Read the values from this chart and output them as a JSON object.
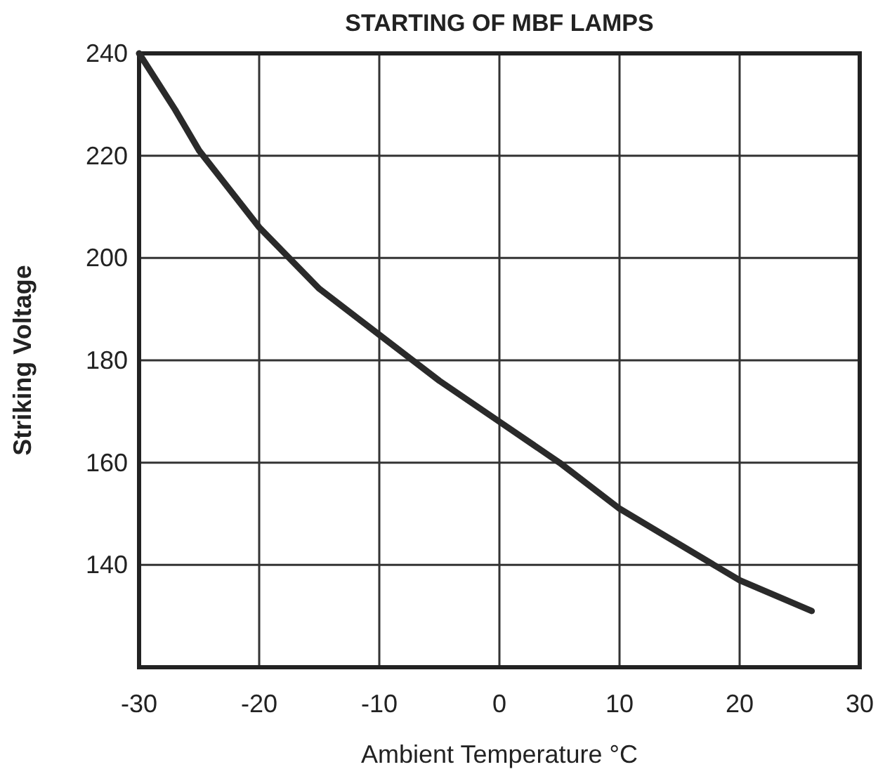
{
  "chart_data": {
    "type": "line",
    "title": "STARTING OF MBF LAMPS",
    "xlabel": "Ambient Temperature °C",
    "ylabel": "Striking Voltage",
    "x": [
      -30,
      -27,
      -25,
      -20,
      -15,
      -10,
      -5,
      0,
      5,
      10,
      15,
      20,
      26
    ],
    "series": [
      {
        "color": "#2a2a2a",
        "values": [
          240,
          229,
          221,
          206,
          194,
          185,
          176,
          168,
          160,
          151,
          144,
          137,
          131
        ]
      }
    ],
    "xlim": [
      -30,
      30
    ],
    "xticks": [
      -30,
      -20,
      -10,
      0,
      10,
      20,
      30
    ],
    "ylim": [
      120,
      240
    ],
    "yticks": [
      140,
      160,
      180,
      200,
      220,
      240
    ],
    "grid": true,
    "marker": "none",
    "line_style": "solid"
  }
}
